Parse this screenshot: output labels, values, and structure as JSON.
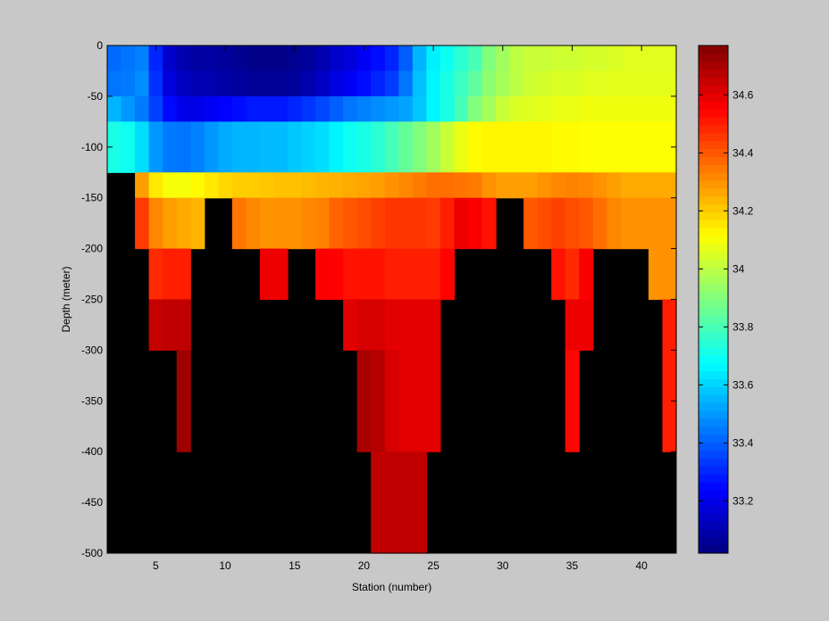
{
  "chart_data": {
    "type": "heatmap",
    "title": "",
    "xlabel": "Station (number)",
    "ylabel": "Depth (meter)",
    "xlim": [
      1.5,
      42.5
    ],
    "ylim": [
      -500,
      0
    ],
    "x_ticks": [
      5,
      10,
      15,
      20,
      25,
      30,
      35,
      40
    ],
    "y_ticks": [
      0,
      -50,
      -100,
      -150,
      -200,
      -250,
      -300,
      -350,
      -400,
      -450,
      -500
    ],
    "colorbar": {
      "colormap": "jet",
      "range": [
        33.02,
        34.77
      ],
      "ticks": [
        33.2,
        33.4,
        33.6,
        33.8,
        34,
        34.2,
        34.4,
        34.6
      ],
      "tick_labels": [
        "33.2",
        "33.4",
        "33.6",
        "33.8",
        "34",
        "34.2",
        "34.4",
        "34.6"
      ]
    },
    "missing_value_color": "#000000",
    "grid": false,
    "stations_x": [
      2,
      3,
      4,
      5,
      6,
      7,
      8,
      9,
      10,
      11,
      12,
      13,
      14,
      15,
      16,
      17,
      18,
      19,
      20,
      21,
      22,
      23,
      24,
      25,
      26,
      27,
      28,
      29,
      30,
      31,
      32,
      33,
      34,
      35,
      36,
      37,
      38,
      39,
      40,
      41,
      42
    ],
    "depth_bands": [
      {
        "top": 0,
        "bottom": -25,
        "values": [
          33.42,
          33.44,
          33.46,
          33.3,
          33.15,
          33.1,
          33.08,
          33.08,
          33.07,
          33.05,
          33.04,
          33.04,
          33.04,
          33.05,
          33.07,
          33.1,
          33.15,
          33.18,
          33.22,
          33.26,
          33.3,
          33.4,
          33.55,
          33.65,
          33.7,
          33.75,
          33.8,
          33.9,
          33.95,
          34.0,
          34.02,
          34.02,
          34.03,
          34.03,
          34.04,
          34.04,
          34.05,
          34.06,
          34.06,
          34.06,
          34.06
        ]
      },
      {
        "top": -25,
        "bottom": -50,
        "values": [
          33.44,
          33.45,
          33.48,
          33.32,
          33.18,
          33.13,
          33.11,
          33.1,
          33.09,
          33.07,
          33.06,
          33.06,
          33.06,
          33.07,
          33.1,
          33.14,
          33.19,
          33.22,
          33.26,
          33.3,
          33.34,
          33.44,
          33.57,
          33.66,
          33.72,
          33.78,
          33.84,
          33.92,
          33.96,
          34.0,
          34.03,
          34.04,
          34.05,
          34.05,
          34.06,
          34.06,
          34.07,
          34.07,
          34.07,
          34.07,
          34.07
        ]
      },
      {
        "top": -50,
        "bottom": -75,
        "values": [
          33.55,
          33.5,
          33.45,
          33.35,
          33.25,
          33.2,
          33.2,
          33.22,
          33.24,
          33.26,
          33.28,
          33.28,
          33.28,
          33.3,
          33.33,
          33.36,
          33.4,
          33.44,
          33.46,
          33.48,
          33.5,
          33.52,
          33.58,
          33.66,
          33.72,
          33.8,
          33.9,
          33.96,
          34.02,
          34.05,
          34.06,
          34.07,
          34.08,
          34.08,
          34.09,
          34.09,
          34.09,
          34.09,
          34.09,
          34.09,
          34.09
        ]
      },
      {
        "top": -75,
        "bottom": -125,
        "values": [
          33.72,
          33.7,
          33.62,
          33.5,
          33.45,
          33.44,
          33.46,
          33.5,
          33.53,
          33.55,
          33.55,
          33.56,
          33.56,
          33.58,
          33.6,
          33.62,
          33.66,
          33.7,
          33.72,
          33.75,
          33.8,
          33.85,
          33.9,
          33.95,
          34.02,
          34.08,
          34.12,
          34.13,
          34.13,
          34.13,
          34.13,
          34.13,
          34.12,
          34.12,
          34.11,
          34.11,
          34.11,
          34.11,
          34.11,
          34.11,
          34.11
        ]
      },
      {
        "top": -125,
        "bottom": -150,
        "values": [
          null,
          null,
          34.28,
          34.15,
          34.1,
          34.1,
          34.12,
          34.15,
          34.18,
          34.2,
          34.2,
          34.21,
          34.22,
          34.22,
          34.23,
          34.24,
          34.25,
          34.26,
          34.27,
          34.28,
          34.3,
          34.32,
          34.34,
          34.36,
          34.36,
          34.35,
          34.34,
          34.3,
          34.28,
          34.28,
          34.28,
          34.3,
          34.32,
          34.33,
          34.32,
          34.3,
          34.28,
          34.26,
          34.26,
          34.26,
          34.26
        ]
      },
      {
        "top": -150,
        "bottom": -200,
        "values": [
          null,
          null,
          34.45,
          34.32,
          34.28,
          34.26,
          34.24,
          null,
          null,
          34.35,
          34.32,
          34.3,
          34.3,
          34.3,
          34.32,
          34.33,
          34.38,
          34.4,
          34.42,
          34.44,
          34.46,
          34.46,
          34.46,
          34.45,
          34.5,
          34.58,
          34.56,
          34.52,
          null,
          null,
          34.4,
          34.42,
          34.44,
          34.42,
          34.4,
          34.36,
          34.32,
          34.3,
          34.3,
          34.3,
          34.3
        ]
      },
      {
        "top": -200,
        "bottom": -250,
        "values": [
          null,
          null,
          null,
          34.48,
          34.5,
          34.5,
          null,
          null,
          null,
          null,
          null,
          34.58,
          34.58,
          null,
          null,
          34.56,
          34.55,
          34.52,
          34.52,
          34.52,
          34.5,
          34.5,
          34.5,
          34.5,
          34.55,
          null,
          null,
          null,
          null,
          null,
          null,
          null,
          34.52,
          34.48,
          34.56,
          null,
          null,
          null,
          null,
          34.3,
          34.3
        ]
      },
      {
        "top": -250,
        "bottom": -300,
        "values": [
          null,
          null,
          null,
          34.65,
          34.66,
          34.66,
          null,
          null,
          null,
          null,
          null,
          null,
          null,
          null,
          null,
          null,
          null,
          34.6,
          34.62,
          34.62,
          34.6,
          34.6,
          34.6,
          34.6,
          null,
          null,
          null,
          null,
          null,
          null,
          null,
          null,
          null,
          34.58,
          34.58,
          null,
          null,
          null,
          null,
          null,
          34.5
        ]
      },
      {
        "top": -300,
        "bottom": -400,
        "values": [
          null,
          null,
          null,
          null,
          null,
          34.72,
          null,
          null,
          null,
          null,
          null,
          null,
          null,
          null,
          null,
          null,
          null,
          null,
          34.7,
          34.68,
          34.62,
          34.6,
          34.6,
          34.6,
          null,
          null,
          null,
          null,
          null,
          null,
          null,
          null,
          null,
          34.54,
          null,
          null,
          null,
          null,
          null,
          null,
          34.5
        ]
      },
      {
        "top": -400,
        "bottom": -500,
        "values": [
          null,
          null,
          null,
          null,
          null,
          null,
          null,
          null,
          null,
          null,
          null,
          null,
          null,
          null,
          null,
          null,
          null,
          null,
          null,
          34.66,
          34.66,
          34.66,
          34.66,
          null,
          null,
          null,
          null,
          null,
          null,
          null,
          null,
          null,
          null,
          null,
          null,
          null,
          null,
          null,
          null,
          null,
          null
        ]
      }
    ]
  }
}
